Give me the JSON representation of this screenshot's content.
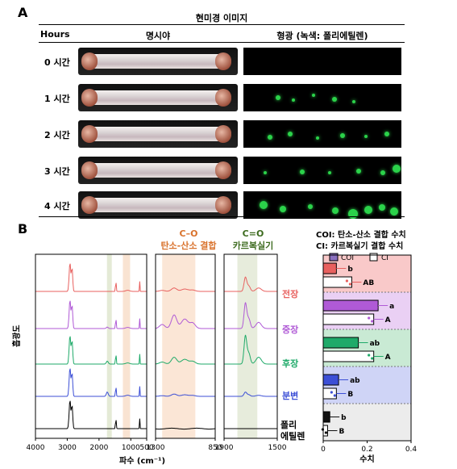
{
  "panel_a": {
    "label": "A",
    "title": "현미경 이미지",
    "col_hours": "Hours",
    "col_brightfield": "명시야",
    "col_fluorescence": "형광 (녹색: 폴리에틸렌)",
    "rows": [
      {
        "label": "0 시간",
        "spots": 0
      },
      {
        "label": "1 시간",
        "spots": 1
      },
      {
        "label": "2 시간",
        "spots": 2
      },
      {
        "label": "3 시간",
        "spots": 3
      },
      {
        "label": "4 시간",
        "spots": 4
      }
    ]
  },
  "panel_b": {
    "label": "B",
    "ylabel": "흡광도",
    "xlabel": "파수 (cm⁻¹)",
    "co_title_1": "C–O",
    "co_title_2": "탄소-산소 결합",
    "cdo_title_1": "C=O",
    "cdo_title_2": "카르복실기",
    "legend_line1": "COI: 탄소-산소 결합 수치",
    "legend_line2": "CI: 카르복실기 결합 수치",
    "ticks_full": [
      "4000",
      "3000",
      "2000",
      "1000",
      "500"
    ],
    "ticks_co": [
      "1300",
      "850"
    ],
    "ticks_cdo": [
      "1900",
      "1500"
    ],
    "samples": [
      {
        "name": "전장",
        "color": "#e8615f"
      },
      {
        "name": "중장",
        "color": "#b05ad6"
      },
      {
        "name": "후장",
        "color": "#1faa69"
      },
      {
        "name": "분변",
        "color": "#3c4fd6"
      },
      {
        "name": "폴리\n에틸렌",
        "color": "#000000"
      }
    ],
    "sample_lines": [
      "전장",
      "중장",
      "후장",
      "분변",
      "폴리",
      "에틸렌"
    ]
  },
  "chart_data": {
    "type": "bar",
    "orientation": "horizontal",
    "xlabel": "수치",
    "xlim": [
      0,
      0.4
    ],
    "xticks": [
      "0",
      "0.2",
      "0.4"
    ],
    "legend": [
      "COI",
      "CI"
    ],
    "categories": [
      "전장",
      "중장",
      "후장",
      "분변",
      "폴리에틸렌"
    ],
    "series": [
      {
        "name": "COI",
        "values": [
          0.06,
          0.25,
          0.16,
          0.07,
          0.03
        ],
        "letters": [
          "b",
          "a",
          "ab",
          "ab",
          "b"
        ]
      },
      {
        "name": "CI",
        "values": [
          0.13,
          0.23,
          0.23,
          0.06,
          0.02
        ],
        "letters": [
          "AB",
          "A",
          "A",
          "B",
          "B"
        ]
      }
    ],
    "colors": {
      "전장": {
        "fill": "#e8615f",
        "bg": "#f9c9c9"
      },
      "중장": {
        "fill": "#b05ad6",
        "bg": "#ead0f4"
      },
      "후장": {
        "fill": "#1faa69",
        "bg": "#c9ead4"
      },
      "분변": {
        "fill": "#3c4fd6",
        "bg": "#cfd4f6"
      },
      "폴리에틸렌": {
        "fill": "#111111",
        "bg": "#ececec"
      }
    }
  }
}
